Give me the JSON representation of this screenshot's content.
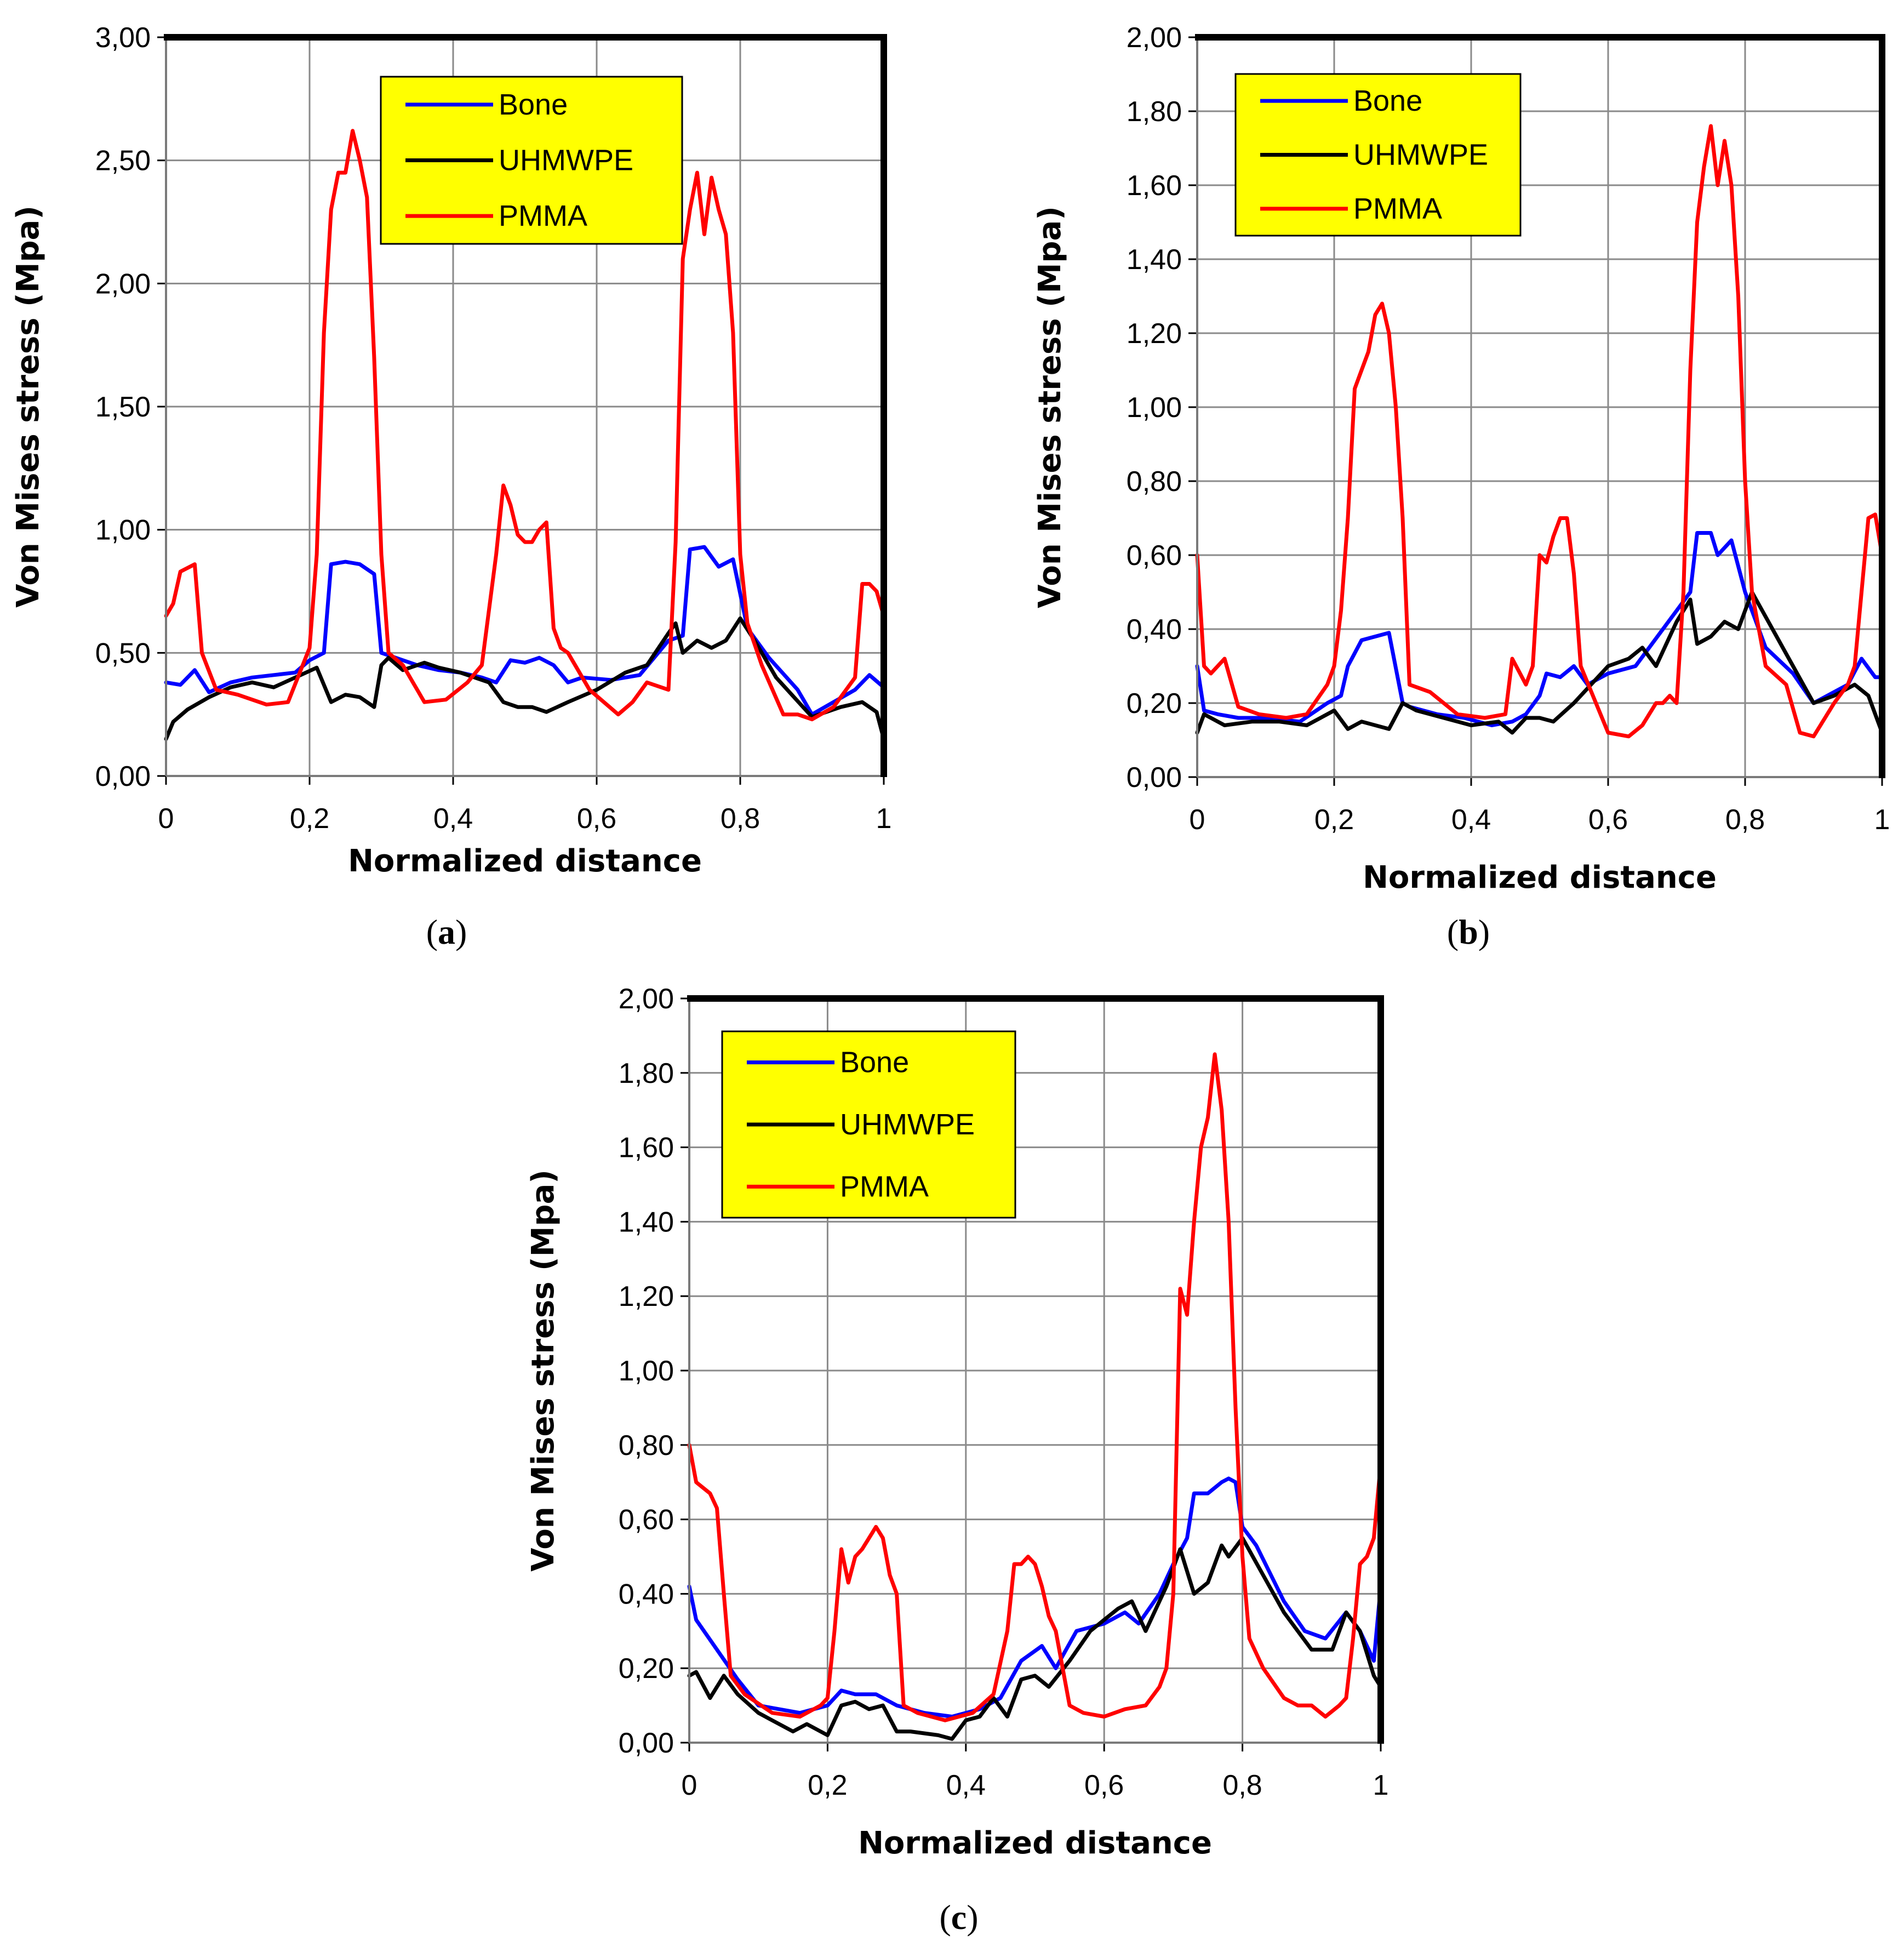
{
  "chart_data": [
    {
      "panel": "a",
      "caption_letter": "a",
      "type": "line",
      "xlabel": "Normalized distance",
      "ylabel": "Von Mises stress (Mpa)",
      "xlim": [
        0,
        1
      ],
      "ylim": [
        0,
        3
      ],
      "xticks": [
        "0",
        "0,2",
        "0,4",
        "0,6",
        "0,8",
        "1"
      ],
      "yticks": [
        "0,00",
        "0,50",
        "1,00",
        "1,50",
        "2,00",
        "2,50",
        "3,00"
      ],
      "legend": [
        "Bone",
        "UHMWPE",
        "PMMA"
      ],
      "series": [
        {
          "name": "Bone",
          "color": "#0000ff",
          "x": [
            0,
            0.02,
            0.04,
            0.06,
            0.09,
            0.12,
            0.15,
            0.18,
            0.2,
            0.22,
            0.23,
            0.25,
            0.27,
            0.29,
            0.3,
            0.32,
            0.35,
            0.38,
            0.41,
            0.44,
            0.46,
            0.48,
            0.5,
            0.52,
            0.54,
            0.56,
            0.58,
            0.62,
            0.66,
            0.7,
            0.72,
            0.73,
            0.75,
            0.77,
            0.79,
            0.81,
            0.84,
            0.88,
            0.9,
            0.93,
            0.96,
            0.98,
            1
          ],
          "y": [
            0.38,
            0.37,
            0.43,
            0.34,
            0.38,
            0.4,
            0.41,
            0.42,
            0.47,
            0.5,
            0.86,
            0.87,
            0.86,
            0.82,
            0.5,
            0.48,
            0.45,
            0.43,
            0.42,
            0.4,
            0.38,
            0.47,
            0.46,
            0.48,
            0.45,
            0.38,
            0.4,
            0.39,
            0.41,
            0.55,
            0.57,
            0.92,
            0.93,
            0.85,
            0.88,
            0.6,
            0.48,
            0.35,
            0.25,
            0.3,
            0.35,
            0.41,
            0.36
          ]
        },
        {
          "name": "UHMWPE",
          "color": "#000000",
          "x": [
            0,
            0.01,
            0.03,
            0.06,
            0.09,
            0.12,
            0.15,
            0.18,
            0.21,
            0.23,
            0.25,
            0.27,
            0.29,
            0.3,
            0.31,
            0.33,
            0.36,
            0.38,
            0.41,
            0.43,
            0.45,
            0.47,
            0.49,
            0.51,
            0.53,
            0.56,
            0.6,
            0.64,
            0.67,
            0.7,
            0.71,
            0.72,
            0.74,
            0.76,
            0.78,
            0.8,
            0.82,
            0.85,
            0.9,
            0.94,
            0.97,
            0.99,
            1
          ],
          "y": [
            0.15,
            0.22,
            0.27,
            0.32,
            0.36,
            0.38,
            0.36,
            0.4,
            0.44,
            0.3,
            0.33,
            0.32,
            0.28,
            0.45,
            0.48,
            0.43,
            0.46,
            0.44,
            0.42,
            0.4,
            0.38,
            0.3,
            0.28,
            0.28,
            0.26,
            0.3,
            0.35,
            0.42,
            0.45,
            0.58,
            0.62,
            0.5,
            0.55,
            0.52,
            0.55,
            0.64,
            0.55,
            0.4,
            0.24,
            0.28,
            0.3,
            0.26,
            0.15
          ]
        },
        {
          "name": "PMMA",
          "color": "#ff0000",
          "x": [
            0,
            0.01,
            0.02,
            0.04,
            0.05,
            0.07,
            0.1,
            0.14,
            0.17,
            0.2,
            0.21,
            0.22,
            0.23,
            0.24,
            0.25,
            0.26,
            0.27,
            0.28,
            0.29,
            0.3,
            0.31,
            0.33,
            0.36,
            0.39,
            0.42,
            0.44,
            0.46,
            0.47,
            0.48,
            0.49,
            0.5,
            0.51,
            0.52,
            0.53,
            0.54,
            0.55,
            0.56,
            0.59,
            0.63,
            0.65,
            0.67,
            0.7,
            0.71,
            0.72,
            0.73,
            0.74,
            0.75,
            0.76,
            0.77,
            0.78,
            0.79,
            0.8,
            0.81,
            0.83,
            0.86,
            0.88,
            0.9,
            0.93,
            0.96,
            0.97,
            0.98,
            0.99,
            1
          ],
          "y": [
            0.65,
            0.7,
            0.83,
            0.86,
            0.5,
            0.35,
            0.33,
            0.29,
            0.3,
            0.52,
            0.9,
            1.8,
            2.3,
            2.45,
            2.45,
            2.62,
            2.5,
            2.35,
            1.7,
            0.9,
            0.5,
            0.45,
            0.3,
            0.31,
            0.38,
            0.45,
            0.9,
            1.18,
            1.1,
            0.98,
            0.95,
            0.95,
            1.0,
            1.03,
            0.6,
            0.52,
            0.5,
            0.35,
            0.25,
            0.3,
            0.38,
            0.35,
            0.95,
            2.1,
            2.3,
            2.45,
            2.2,
            2.43,
            2.3,
            2.2,
            1.8,
            0.9,
            0.62,
            0.45,
            0.25,
            0.25,
            0.23,
            0.28,
            0.4,
            0.78,
            0.78,
            0.75,
            0.65
          ]
        }
      ]
    },
    {
      "panel": "b",
      "caption_letter": "b",
      "type": "line",
      "xlabel": "Normalized distance",
      "ylabel": "Von Mises stress (Mpa)",
      "xlim": [
        0,
        1
      ],
      "ylim": [
        0,
        2
      ],
      "xticks": [
        "0",
        "0,2",
        "0,4",
        "0,6",
        "0,8",
        "1"
      ],
      "yticks": [
        "0,00",
        "0,20",
        "0,40",
        "0,60",
        "0,80",
        "1,00",
        "1,20",
        "1,40",
        "1,60",
        "1,80",
        "2,00"
      ],
      "legend": [
        "Bone",
        "UHMWPE",
        "PMMA"
      ],
      "series": [
        {
          "name": "Bone",
          "color": "#0000ff",
          "x": [
            0,
            0.01,
            0.03,
            0.06,
            0.1,
            0.15,
            0.19,
            0.21,
            0.22,
            0.24,
            0.26,
            0.28,
            0.3,
            0.31,
            0.35,
            0.39,
            0.43,
            0.46,
            0.48,
            0.5,
            0.51,
            0.53,
            0.55,
            0.57,
            0.6,
            0.64,
            0.7,
            0.72,
            0.73,
            0.75,
            0.76,
            0.78,
            0.8,
            0.83,
            0.87,
            0.9,
            0.95,
            0.97,
            0.99,
            1
          ],
          "y": [
            0.3,
            0.18,
            0.17,
            0.16,
            0.16,
            0.15,
            0.2,
            0.22,
            0.3,
            0.37,
            0.38,
            0.39,
            0.2,
            0.19,
            0.17,
            0.16,
            0.14,
            0.15,
            0.17,
            0.22,
            0.28,
            0.27,
            0.3,
            0.25,
            0.28,
            0.3,
            0.45,
            0.5,
            0.66,
            0.66,
            0.6,
            0.64,
            0.5,
            0.35,
            0.28,
            0.2,
            0.25,
            0.32,
            0.27,
            0.27
          ]
        },
        {
          "name": "UHMWPE",
          "color": "#000000",
          "x": [
            0,
            0.01,
            0.04,
            0.08,
            0.12,
            0.16,
            0.2,
            0.22,
            0.24,
            0.26,
            0.28,
            0.3,
            0.32,
            0.36,
            0.4,
            0.44,
            0.46,
            0.48,
            0.5,
            0.52,
            0.55,
            0.6,
            0.63,
            0.65,
            0.67,
            0.7,
            0.72,
            0.73,
            0.75,
            0.77,
            0.79,
            0.81,
            0.84,
            0.87,
            0.9,
            0.93,
            0.96,
            0.98,
            1
          ],
          "y": [
            0.12,
            0.17,
            0.14,
            0.15,
            0.15,
            0.14,
            0.18,
            0.13,
            0.15,
            0.14,
            0.13,
            0.2,
            0.18,
            0.16,
            0.14,
            0.15,
            0.12,
            0.16,
            0.16,
            0.15,
            0.2,
            0.3,
            0.32,
            0.35,
            0.3,
            0.42,
            0.48,
            0.36,
            0.38,
            0.42,
            0.4,
            0.5,
            0.4,
            0.3,
            0.2,
            0.22,
            0.25,
            0.22,
            0.12
          ]
        },
        {
          "name": "PMMA",
          "color": "#ff0000",
          "x": [
            0,
            0.01,
            0.02,
            0.04,
            0.06,
            0.09,
            0.13,
            0.16,
            0.19,
            0.2,
            0.21,
            0.22,
            0.23,
            0.24,
            0.25,
            0.26,
            0.27,
            0.28,
            0.29,
            0.3,
            0.31,
            0.34,
            0.38,
            0.42,
            0.45,
            0.46,
            0.48,
            0.49,
            0.5,
            0.51,
            0.52,
            0.53,
            0.54,
            0.55,
            0.56,
            0.6,
            0.63,
            0.65,
            0.67,
            0.68,
            0.69,
            0.7,
            0.71,
            0.72,
            0.73,
            0.74,
            0.75,
            0.76,
            0.77,
            0.78,
            0.79,
            0.8,
            0.81,
            0.83,
            0.86,
            0.88,
            0.9,
            0.93,
            0.95,
            0.96,
            0.97,
            0.98,
            0.99,
            1
          ],
          "y": [
            0.6,
            0.3,
            0.28,
            0.32,
            0.19,
            0.17,
            0.16,
            0.17,
            0.25,
            0.3,
            0.45,
            0.7,
            1.05,
            1.1,
            1.15,
            1.25,
            1.28,
            1.2,
            1.0,
            0.7,
            0.25,
            0.23,
            0.17,
            0.16,
            0.17,
            0.32,
            0.25,
            0.3,
            0.6,
            0.58,
            0.65,
            0.7,
            0.7,
            0.55,
            0.3,
            0.12,
            0.11,
            0.14,
            0.2,
            0.2,
            0.22,
            0.2,
            0.5,
            1.1,
            1.5,
            1.65,
            1.76,
            1.6,
            1.72,
            1.6,
            1.3,
            0.8,
            0.5,
            0.3,
            0.25,
            0.12,
            0.11,
            0.2,
            0.25,
            0.3,
            0.5,
            0.7,
            0.71,
            0.6
          ]
        }
      ]
    },
    {
      "panel": "c",
      "caption_letter": "c",
      "type": "line",
      "xlabel": "Normalized distance",
      "ylabel": "Von Mises stress (Mpa)",
      "xlim": [
        0,
        1
      ],
      "ylim": [
        0,
        2
      ],
      "xticks": [
        "0",
        "0,2",
        "0,4",
        "0,6",
        "0,8",
        "1"
      ],
      "yticks": [
        "0,00",
        "0,20",
        "0,40",
        "0,60",
        "0,80",
        "1,00",
        "1,20",
        "1,40",
        "1,60",
        "1,80",
        "2,00"
      ],
      "legend": [
        "Bone",
        "UHMWPE",
        "PMMA"
      ],
      "series": [
        {
          "name": "Bone",
          "color": "#0000ff",
          "x": [
            0,
            0.01,
            0.04,
            0.07,
            0.1,
            0.13,
            0.16,
            0.2,
            0.22,
            0.24,
            0.27,
            0.3,
            0.34,
            0.38,
            0.42,
            0.45,
            0.48,
            0.51,
            0.53,
            0.56,
            0.6,
            0.63,
            0.65,
            0.68,
            0.7,
            0.72,
            0.73,
            0.75,
            0.77,
            0.78,
            0.79,
            0.8,
            0.82,
            0.86,
            0.89,
            0.92,
            0.95,
            0.97,
            0.99,
            1
          ],
          "y": [
            0.42,
            0.33,
            0.25,
            0.17,
            0.1,
            0.09,
            0.08,
            0.1,
            0.14,
            0.13,
            0.13,
            0.1,
            0.08,
            0.07,
            0.09,
            0.12,
            0.22,
            0.26,
            0.2,
            0.3,
            0.32,
            0.35,
            0.32,
            0.4,
            0.48,
            0.55,
            0.67,
            0.67,
            0.7,
            0.71,
            0.7,
            0.58,
            0.53,
            0.38,
            0.3,
            0.28,
            0.35,
            0.3,
            0.22,
            0.42
          ]
        },
        {
          "name": "UHMWPE",
          "color": "#000000",
          "x": [
            0,
            0.01,
            0.03,
            0.05,
            0.07,
            0.1,
            0.12,
            0.15,
            0.17,
            0.2,
            0.22,
            0.24,
            0.26,
            0.28,
            0.3,
            0.32,
            0.36,
            0.38,
            0.4,
            0.42,
            0.44,
            0.46,
            0.48,
            0.5,
            0.52,
            0.55,
            0.58,
            0.6,
            0.62,
            0.64,
            0.66,
            0.69,
            0.71,
            0.73,
            0.75,
            0.77,
            0.78,
            0.8,
            0.83,
            0.86,
            0.9,
            0.93,
            0.95,
            0.97,
            0.99,
            1
          ],
          "y": [
            0.18,
            0.19,
            0.12,
            0.18,
            0.13,
            0.08,
            0.06,
            0.03,
            0.05,
            0.02,
            0.1,
            0.11,
            0.09,
            0.1,
            0.03,
            0.03,
            0.02,
            0.01,
            0.06,
            0.07,
            0.12,
            0.07,
            0.17,
            0.18,
            0.15,
            0.22,
            0.3,
            0.33,
            0.36,
            0.38,
            0.3,
            0.42,
            0.52,
            0.4,
            0.43,
            0.53,
            0.5,
            0.55,
            0.45,
            0.35,
            0.25,
            0.25,
            0.35,
            0.3,
            0.18,
            0.15
          ]
        },
        {
          "name": "PMMA",
          "color": "#ff0000",
          "x": [
            0,
            0.01,
            0.03,
            0.04,
            0.05,
            0.06,
            0.08,
            0.12,
            0.16,
            0.19,
            0.2,
            0.21,
            0.22,
            0.23,
            0.24,
            0.25,
            0.26,
            0.27,
            0.28,
            0.29,
            0.3,
            0.31,
            0.33,
            0.37,
            0.41,
            0.44,
            0.46,
            0.47,
            0.48,
            0.49,
            0.5,
            0.51,
            0.52,
            0.53,
            0.55,
            0.57,
            0.6,
            0.63,
            0.66,
            0.68,
            0.69,
            0.7,
            0.71,
            0.72,
            0.73,
            0.74,
            0.75,
            0.76,
            0.77,
            0.78,
            0.79,
            0.8,
            0.81,
            0.83,
            0.86,
            0.88,
            0.9,
            0.92,
            0.94,
            0.95,
            0.96,
            0.97,
            0.98,
            0.99,
            1
          ],
          "y": [
            0.8,
            0.7,
            0.67,
            0.63,
            0.4,
            0.18,
            0.13,
            0.08,
            0.07,
            0.1,
            0.12,
            0.3,
            0.52,
            0.43,
            0.5,
            0.52,
            0.55,
            0.58,
            0.55,
            0.45,
            0.4,
            0.1,
            0.08,
            0.06,
            0.08,
            0.13,
            0.3,
            0.48,
            0.48,
            0.5,
            0.48,
            0.42,
            0.34,
            0.3,
            0.1,
            0.08,
            0.07,
            0.09,
            0.1,
            0.15,
            0.2,
            0.4,
            1.22,
            1.15,
            1.4,
            1.6,
            1.68,
            1.85,
            1.7,
            1.4,
            0.9,
            0.5,
            0.28,
            0.2,
            0.12,
            0.1,
            0.1,
            0.07,
            0.1,
            0.12,
            0.28,
            0.48,
            0.5,
            0.55,
            0.75
          ]
        }
      ]
    }
  ]
}
